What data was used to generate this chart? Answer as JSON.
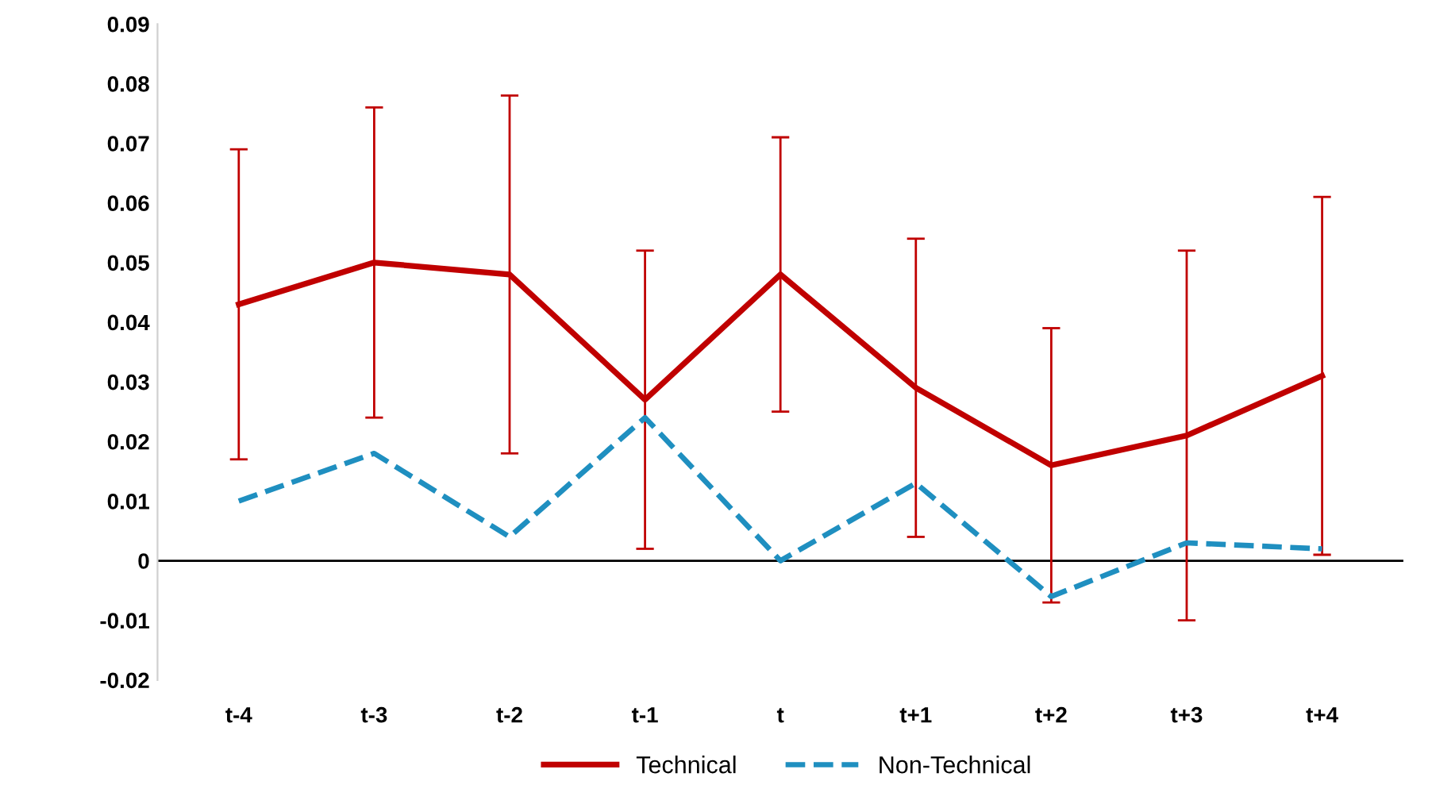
{
  "chart_data": {
    "type": "line",
    "categories": [
      "t-4",
      "t-3",
      "t-2",
      "t-1",
      "t",
      "t+1",
      "t+2",
      "t+3",
      "t+4"
    ],
    "series": [
      {
        "name": "Technical",
        "color": "#c00000",
        "line_style": "solid",
        "values": [
          0.043,
          0.05,
          0.048,
          0.027,
          0.048,
          0.029,
          0.016,
          0.021,
          0.031
        ],
        "errors": [
          0.026,
          0.026,
          0.03,
          0.025,
          0.023,
          0.025,
          0.023,
          0.031,
          0.03
        ]
      },
      {
        "name": "Non-Technical",
        "color": "#1f8fc0",
        "line_style": "dashed",
        "values": [
          0.01,
          0.018,
          0.004,
          0.024,
          0.0,
          0.013,
          -0.006,
          0.003,
          0.002
        ]
      }
    ],
    "ylim": [
      -0.02,
      0.09
    ],
    "yticks": [
      -0.02,
      -0.01,
      0,
      0.01,
      0.02,
      0.03,
      0.04,
      0.05,
      0.06,
      0.07,
      0.08,
      0.09
    ],
    "ref_lines": [
      {
        "axis": "y",
        "value": 0,
        "color": "#000000"
      }
    ],
    "grid": false,
    "legend": "bottom",
    "marker": "none"
  }
}
